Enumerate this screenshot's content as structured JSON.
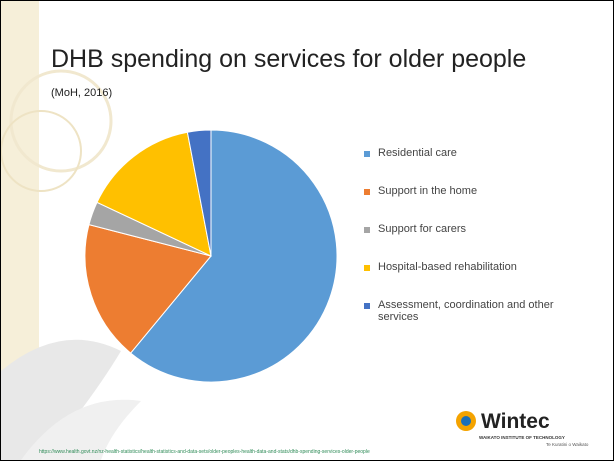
{
  "chart_data": {
    "type": "pie",
    "title": "DHB spending on services for older people",
    "subtitle": "(MoH, 2016)",
    "categories": [
      "Residential care",
      "Support in the home",
      "Support for carers",
      "Hospital-based rehabilitation",
      "Assessment, coordination and other services"
    ],
    "values": [
      61,
      18,
      3,
      15,
      3
    ],
    "colors": [
      "#5b9bd5",
      "#ed7d31",
      "#a5a5a5",
      "#ffc000",
      "#4472c4"
    ]
  },
  "logo": {
    "name": "Wintec",
    "line1": "WAIKATO INSTITUTE OF TECHNOLOGY",
    "line2": "Te Kuratini o Waikato"
  },
  "footer": {
    "url": "https://www.health.govt.nz/nz-health-statistics/health-statistics-and-data-sets/older-peoples-health-data-and-stats/dhb-spending-services-older-people"
  }
}
